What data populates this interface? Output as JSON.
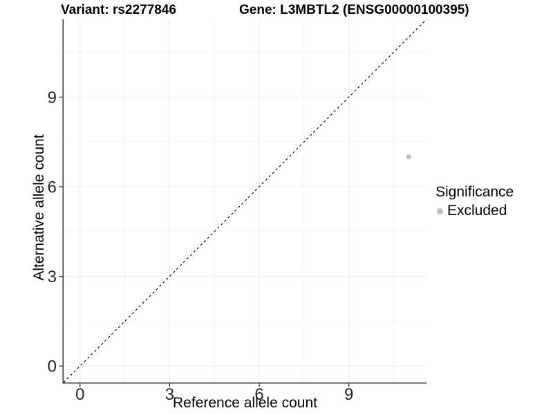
{
  "chart_data": {
    "type": "scatter",
    "title_left": "Variant: rs2277846",
    "title_right": "Gene: L3MBTL2 (ENSG00000100395)",
    "xlabel": "Reference allele count",
    "ylabel": "Alternative allele count",
    "xlim": [
      -0.55,
      11.6
    ],
    "ylim": [
      -0.55,
      11.6
    ],
    "xticks": [
      0,
      3,
      6,
      9
    ],
    "yticks": [
      0,
      3,
      6,
      9
    ],
    "minor_gridlines": [
      1.5,
      4.5,
      7.5,
      10.5
    ],
    "grid": "major+minor",
    "legend_position": "right",
    "series": [
      {
        "name": "Excluded",
        "color": "#bebebe",
        "points": [
          [
            11,
            7
          ]
        ],
        "point_radius": 3.5
      }
    ],
    "reference_line": {
      "type": "identity y=x",
      "style": "dashed",
      "color": "#000000"
    }
  },
  "legend": {
    "title": "Significance",
    "items": [
      {
        "label": "Excluded",
        "color": "#bebebe"
      }
    ]
  },
  "style": {
    "background": "#ffffff",
    "axis_color": "#333333",
    "tick_color": "#333333",
    "tick_label_color": "#262626",
    "grid_major_color": "#ececec",
    "grid_minor_color": "#f4f4f4"
  }
}
